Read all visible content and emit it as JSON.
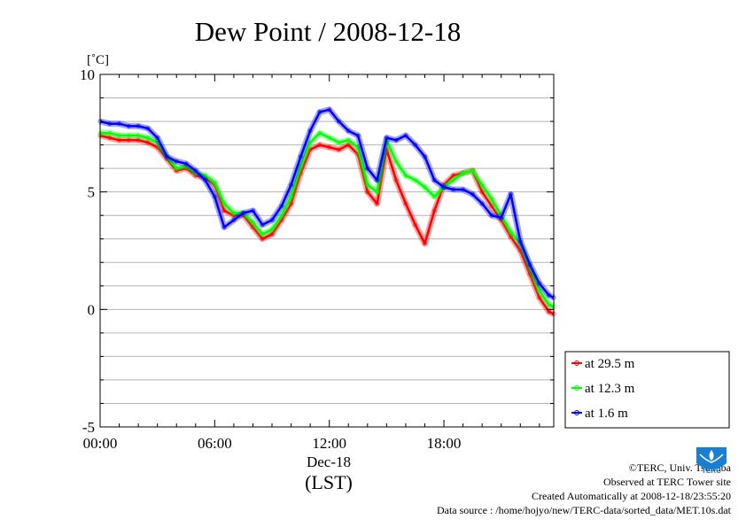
{
  "chart_data": {
    "type": "line",
    "title": "Dew Point / 2008-12-18",
    "ylabel": "[˚C]",
    "ylim": [
      -5,
      10
    ],
    "yticks": [
      "10",
      "5",
      "0",
      "-5"
    ],
    "xlim": [
      0,
      23.75
    ],
    "xticks": [
      {
        "hour": 0,
        "label": "00:00"
      },
      {
        "hour": 6,
        "label": "06:00"
      },
      {
        "hour": 12,
        "label": "12:00"
      },
      {
        "hour": 18,
        "label": "18:00"
      }
    ],
    "date_label": "Dec-18",
    "xlabel": "(LST)",
    "grid": true,
    "legend_position": "right",
    "x": [
      0,
      0.5,
      1,
      1.5,
      2,
      2.5,
      3,
      3.5,
      4,
      4.5,
      5,
      5.5,
      6,
      6.5,
      7,
      7.5,
      8,
      8.5,
      9,
      9.5,
      10,
      10.5,
      11,
      11.5,
      12,
      12.5,
      13,
      13.5,
      14,
      14.5,
      15,
      15.5,
      16,
      16.5,
      17,
      17.5,
      18,
      18.5,
      19,
      19.5,
      20,
      20.5,
      21,
      21.5,
      22,
      22.5,
      23,
      23.5,
      23.75
    ],
    "series": [
      {
        "name": "at 29.5 m",
        "color": "#ff0000",
        "values": [
          7.4,
          7.3,
          7.2,
          7.2,
          7.2,
          7.1,
          6.9,
          6.4,
          5.9,
          6.0,
          5.7,
          5.6,
          5.3,
          4.2,
          4.0,
          4.0,
          3.5,
          3.0,
          3.2,
          3.8,
          4.5,
          5.8,
          6.8,
          7.0,
          6.9,
          6.8,
          7.0,
          6.6,
          5.0,
          4.5,
          6.8,
          5.5,
          4.5,
          3.6,
          2.8,
          4.2,
          5.3,
          5.7,
          5.8,
          5.9,
          5.0,
          4.4,
          3.8,
          3.1,
          2.5,
          1.5,
          0.5,
          -0.1,
          -0.2
        ]
      },
      {
        "name": "at 12.3 m",
        "color": "#00ff00",
        "values": [
          7.5,
          7.5,
          7.4,
          7.4,
          7.4,
          7.3,
          7.1,
          6.5,
          6.0,
          6.1,
          5.8,
          5.7,
          5.4,
          4.5,
          4.1,
          4.1,
          3.7,
          3.2,
          3.4,
          4.0,
          4.8,
          6.1,
          7.1,
          7.5,
          7.3,
          7.1,
          7.2,
          6.9,
          5.3,
          5.0,
          7.2,
          6.3,
          5.7,
          5.5,
          5.2,
          4.8,
          5.2,
          5.5,
          5.8,
          5.9,
          5.3,
          4.7,
          4.0,
          3.3,
          2.8,
          1.8,
          0.8,
          0.2,
          0.1
        ]
      },
      {
        "name": "at 1.6 m",
        "color": "#0000ff",
        "values": [
          8.0,
          7.9,
          7.9,
          7.8,
          7.8,
          7.7,
          7.3,
          6.5,
          6.3,
          6.2,
          5.9,
          5.5,
          4.8,
          3.5,
          3.8,
          4.1,
          4.2,
          3.6,
          3.8,
          4.4,
          5.3,
          6.5,
          7.6,
          8.4,
          8.5,
          8.0,
          7.6,
          7.4,
          6.0,
          5.5,
          7.3,
          7.2,
          7.4,
          7.0,
          6.5,
          5.5,
          5.2,
          5.1,
          5.1,
          4.9,
          4.5,
          4.0,
          3.9,
          4.9,
          2.9,
          1.9,
          1.1,
          0.6,
          0.5
        ]
      }
    ]
  },
  "credits": {
    "copyright": "©TERC, Univ. Tsukuba",
    "observed": "Observed at TERC Tower site",
    "created": "Created Automatically at 2008-12-18/23:55:20",
    "source": "Data source : /home/hojyo/new/TERC-data/sorted_data/MET.10s.dat"
  },
  "logo": {
    "name": "terc-logo",
    "text": "TERC",
    "color": "#1a7fd0"
  }
}
